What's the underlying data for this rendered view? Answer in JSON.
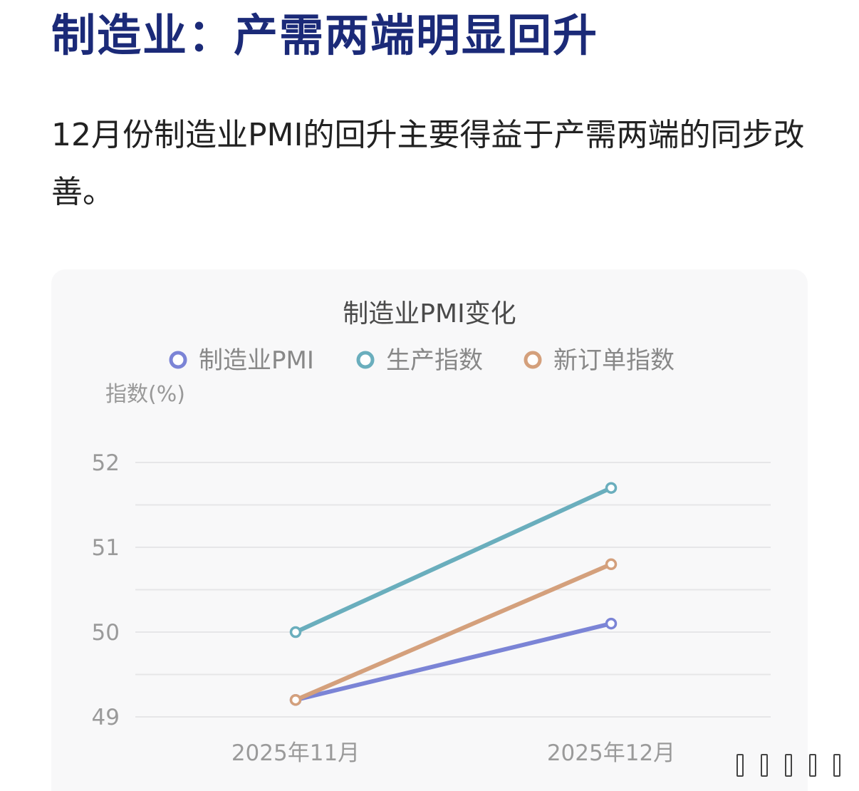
{
  "header": {
    "title": "制造业：产需两端明显回升",
    "intro": "12月份制造业PMI的回升主要得益于产需两端的同步改善。"
  },
  "chart_data": {
    "type": "line",
    "title": "制造业PMI变化",
    "ylabel": "指数(%)",
    "xlabel": "",
    "categories": [
      "2025年11月",
      "2025年12月"
    ],
    "ylim": [
      49,
      52
    ],
    "yticks": [
      49,
      50,
      51,
      52
    ],
    "grid": true,
    "legend_position": "top",
    "series": [
      {
        "name": "制造业PMI",
        "values": [
          49.2,
          50.1
        ],
        "color": "#7b84d6"
      },
      {
        "name": "生产指数",
        "values": [
          50.0,
          51.7
        ],
        "color": "#6aaebd"
      },
      {
        "name": "新订单指数",
        "values": [
          49.2,
          50.8
        ],
        "color": "#d4a07c"
      }
    ]
  }
}
